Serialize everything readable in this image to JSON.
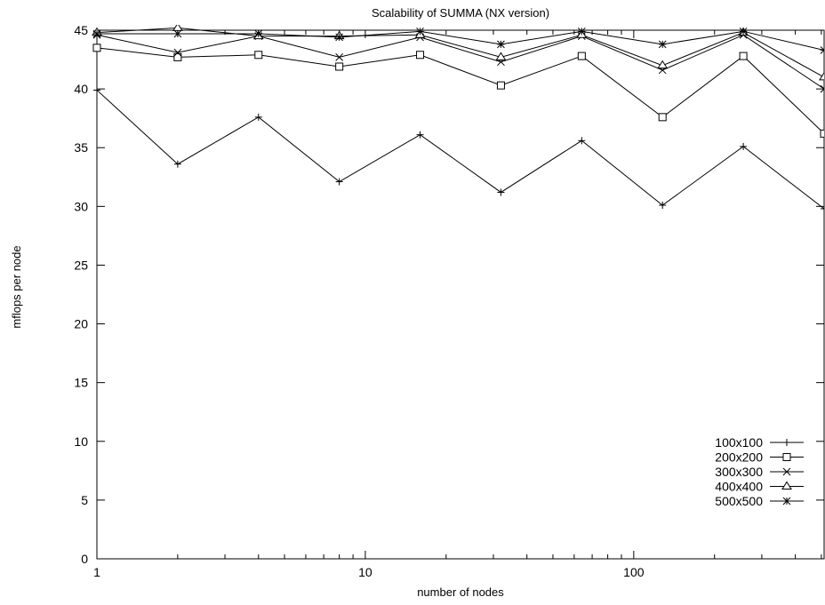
{
  "chart_data": {
    "type": "line",
    "title": "Scalability of SUMMA (NX version)",
    "xlabel": "number of nodes",
    "ylabel": "mflops per node",
    "x_scale": "log",
    "xlim": [
      1,
      512
    ],
    "ylim": [
      0,
      45
    ],
    "x_ticks": [
      1,
      10,
      100
    ],
    "y_ticks": [
      0,
      5,
      10,
      15,
      20,
      25,
      30,
      35,
      40,
      45
    ],
    "x_tick_labels": [
      "1",
      "10",
      "100"
    ],
    "y_tick_labels": [
      "0",
      "5",
      "10",
      "15",
      "20",
      "25",
      "30",
      "35",
      "40",
      "45"
    ],
    "grid": false,
    "legend_position": "bottom-right",
    "x": [
      1,
      2,
      4,
      8,
      16,
      32,
      64,
      128,
      256,
      512
    ],
    "series": [
      {
        "name": "100x100",
        "marker": "plus",
        "values": [
          39.9,
          33.6,
          37.6,
          32.1,
          36.1,
          31.2,
          35.6,
          30.1,
          35.1,
          29.8
        ]
      },
      {
        "name": "200x200",
        "marker": "square",
        "values": [
          43.5,
          42.7,
          42.9,
          41.9,
          42.9,
          40.3,
          42.8,
          37.6,
          42.8,
          36.2
        ]
      },
      {
        "name": "300x300",
        "marker": "cross",
        "values": [
          44.6,
          43.1,
          44.5,
          42.7,
          44.4,
          42.3,
          44.5,
          41.6,
          44.6,
          40.0
        ]
      },
      {
        "name": "400x400",
        "marker": "triangle",
        "values": [
          44.8,
          45.2,
          44.5,
          44.5,
          44.6,
          42.7,
          44.6,
          42.0,
          44.8,
          41.0
        ]
      },
      {
        "name": "500x500",
        "marker": "star",
        "values": [
          44.7,
          44.7,
          44.7,
          44.4,
          44.9,
          43.8,
          44.9,
          43.8,
          44.9,
          43.3
        ]
      }
    ],
    "color": "#000000"
  }
}
